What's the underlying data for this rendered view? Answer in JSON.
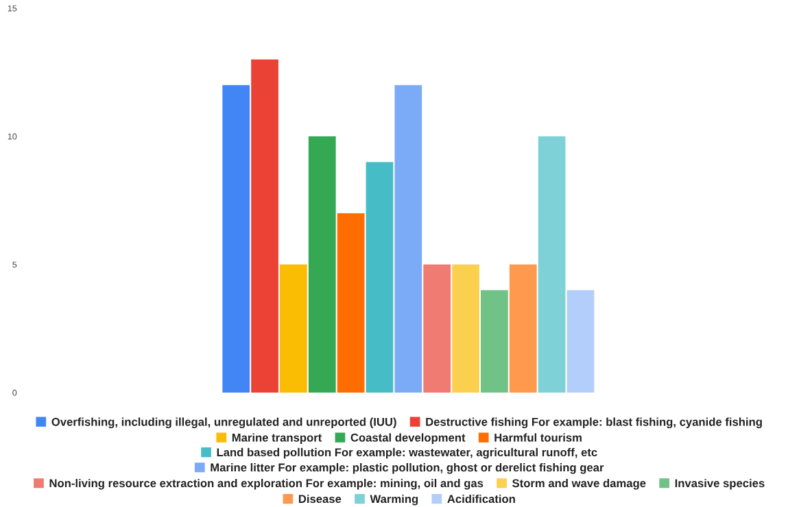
{
  "chart_data": {
    "type": "bar",
    "categories": [
      null
    ],
    "ylim": [
      0,
      15
    ],
    "yticks": [
      0,
      5,
      10,
      15
    ],
    "grid": false,
    "legend": "bottom",
    "series": [
      {
        "name": "Overfishing, including illegal, unregulated and unreported (IUU)",
        "color": "#4285f4",
        "values": [
          12
        ]
      },
      {
        "name": "Destructive fishing For example: blast fishing, cyanide fishing",
        "color": "#ea4335",
        "values": [
          13
        ]
      },
      {
        "name": "Marine transport",
        "color": "#fbbc04",
        "values": [
          5
        ]
      },
      {
        "name": "Coastal development",
        "color": "#34a853",
        "values": [
          10
        ]
      },
      {
        "name": "Harmful tourism",
        "color": "#ff6d01",
        "values": [
          7
        ]
      },
      {
        "name": "Land based pollution For example: wastewater, agricultural runoff, etc",
        "color": "#46bdc6",
        "values": [
          9
        ]
      },
      {
        "name": "Marine litter For example: plastic pollution, ghost or derelict fishing gear",
        "color": "#7baaf7",
        "values": [
          12
        ]
      },
      {
        "name": "Non-living resource extraction and exploration For example: mining, oil and gas",
        "color": "#f07b72",
        "values": [
          5
        ]
      },
      {
        "name": "Storm and wave damage",
        "color": "#fcd04f",
        "values": [
          5
        ]
      },
      {
        "name": "Invasive species",
        "color": "#71c287",
        "values": [
          4
        ]
      },
      {
        "name": "Disease",
        "color": "#ff994d",
        "values": [
          5
        ]
      },
      {
        "name": "Warming",
        "color": "#7ed1d7",
        "values": [
          10
        ]
      },
      {
        "name": "Acidification",
        "color": "#b3cefb",
        "values": [
          4
        ]
      }
    ]
  }
}
